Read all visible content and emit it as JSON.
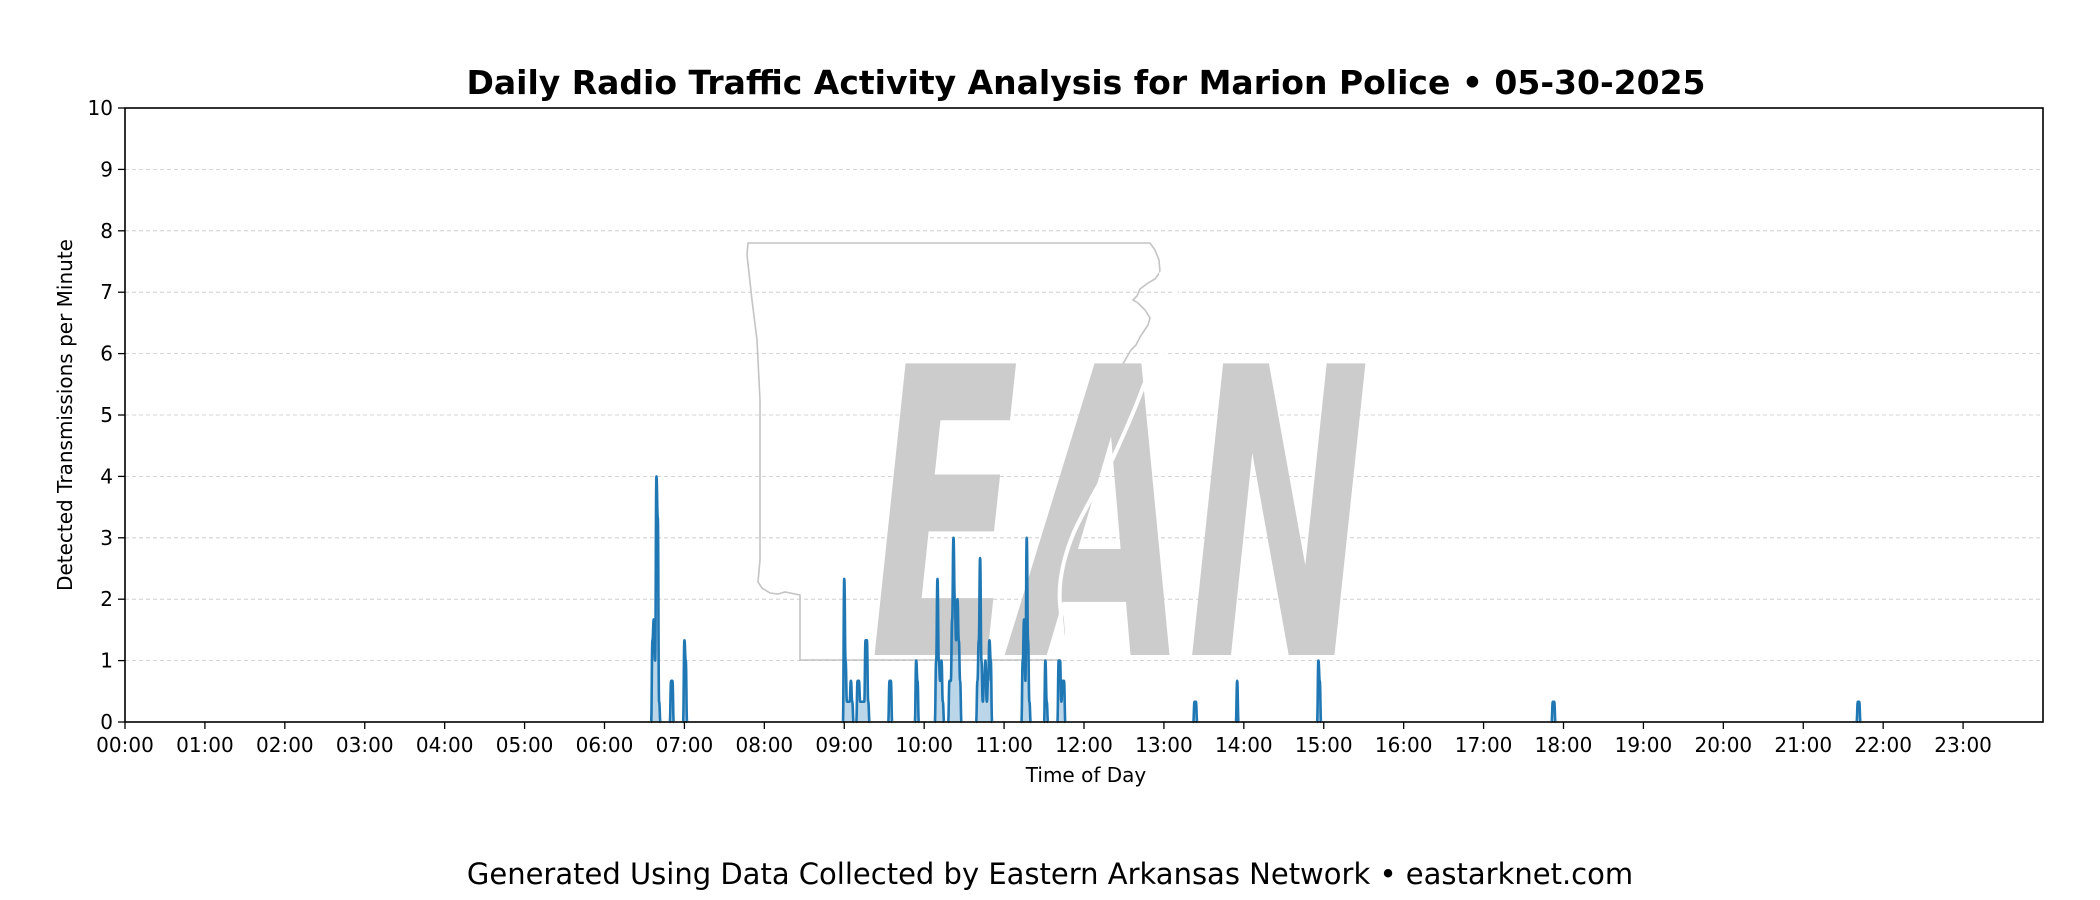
{
  "chart_data": {
    "type": "area",
    "title": "Daily Radio Traffic Activity Analysis for Marion Police • 05-30-2025",
    "xlabel": "Time of Day",
    "ylabel": "Detected Transmissions per Minute",
    "xlim_hours": [
      0,
      24
    ],
    "ylim": [
      0,
      10
    ],
    "y_ticks": [
      0,
      1,
      2,
      3,
      4,
      5,
      6,
      7,
      8,
      9,
      10
    ],
    "x_tick_labels": [
      "00:00",
      "01:00",
      "02:00",
      "03:00",
      "04:00",
      "05:00",
      "06:00",
      "07:00",
      "08:00",
      "09:00",
      "10:00",
      "11:00",
      "12:00",
      "13:00",
      "14:00",
      "15:00",
      "16:00",
      "17:00",
      "18:00",
      "19:00",
      "20:00",
      "21:00",
      "22:00",
      "23:00"
    ],
    "grid": "horizontal-dashed",
    "line_color": "#1f77b4",
    "fill_color": "#1f77b4",
    "series": [
      {
        "points": [
          [
            "06:35",
            0
          ],
          [
            "06:36",
            1.33
          ],
          [
            "06:37",
            1.67
          ],
          [
            "06:38",
            1.0
          ],
          [
            "06:39",
            4.0
          ],
          [
            "06:40",
            3.33
          ],
          [
            "06:41",
            0.33
          ],
          [
            "06:42",
            0
          ],
          [
            "06:49",
            0
          ],
          [
            "06:50",
            0.67
          ],
          [
            "06:51",
            0.67
          ],
          [
            "06:52",
            0
          ],
          [
            "06:59",
            0
          ],
          [
            "07:00",
            1.33
          ],
          [
            "07:01",
            1.0
          ],
          [
            "07:02",
            0
          ],
          [
            "08:59",
            0
          ],
          [
            "09:00",
            2.33
          ],
          [
            "09:01",
            1.0
          ],
          [
            "09:02",
            0.33
          ],
          [
            "09:04",
            0.33
          ],
          [
            "09:05",
            0.67
          ],
          [
            "09:06",
            0.33
          ],
          [
            "09:07",
            0
          ],
          [
            "09:09",
            0
          ],
          [
            "09:10",
            0.67
          ],
          [
            "09:11",
            0.67
          ],
          [
            "09:12",
            0.33
          ],
          [
            "09:13",
            0.33
          ],
          [
            "09:14",
            0.33
          ],
          [
            "09:15",
            0.33
          ],
          [
            "09:16",
            1.33
          ],
          [
            "09:17",
            1.33
          ],
          [
            "09:18",
            0.33
          ],
          [
            "09:19",
            0
          ],
          [
            "09:33",
            0
          ],
          [
            "09:34",
            0.67
          ],
          [
            "09:35",
            0.67
          ],
          [
            "09:36",
            0
          ],
          [
            "09:53",
            0
          ],
          [
            "09:54",
            1.0
          ],
          [
            "09:55",
            0.67
          ],
          [
            "09:56",
            0
          ],
          [
            "10:08",
            0
          ],
          [
            "10:09",
            1.0
          ],
          [
            "10:10",
            2.33
          ],
          [
            "10:11",
            1.0
          ],
          [
            "10:12",
            0.67
          ],
          [
            "10:13",
            1.0
          ],
          [
            "10:14",
            0.33
          ],
          [
            "10:15",
            0
          ],
          [
            "10:18",
            0
          ],
          [
            "10:19",
            0.67
          ],
          [
            "10:20",
            0.67
          ],
          [
            "10:21",
            1.67
          ],
          [
            "10:22",
            3.0
          ],
          [
            "10:23",
            2.0
          ],
          [
            "10:24",
            1.33
          ],
          [
            "10:25",
            2.0
          ],
          [
            "10:26",
            1.33
          ],
          [
            "10:27",
            0.67
          ],
          [
            "10:28",
            0
          ],
          [
            "10:39",
            0
          ],
          [
            "10:40",
            0.67
          ],
          [
            "10:41",
            1.33
          ],
          [
            "10:42",
            2.67
          ],
          [
            "10:43",
            1.0
          ],
          [
            "10:44",
            0.33
          ],
          [
            "10:45",
            0.67
          ],
          [
            "10:46",
            1.0
          ],
          [
            "10:47",
            0.33
          ],
          [
            "10:48",
            0.67
          ],
          [
            "10:49",
            1.33
          ],
          [
            "10:50",
            1.0
          ],
          [
            "10:51",
            0
          ],
          [
            "11:13",
            0
          ],
          [
            "11:14",
            1.0
          ],
          [
            "11:15",
            1.67
          ],
          [
            "11:16",
            0.67
          ],
          [
            "11:17",
            3.0
          ],
          [
            "11:18",
            1.33
          ],
          [
            "11:19",
            0.33
          ],
          [
            "11:20",
            0
          ],
          [
            "11:30",
            0
          ],
          [
            "11:31",
            1.0
          ],
          [
            "11:32",
            0.33
          ],
          [
            "11:33",
            0
          ],
          [
            "11:40",
            0
          ],
          [
            "11:41",
            1.0
          ],
          [
            "11:42",
            1.0
          ],
          [
            "11:43",
            0.33
          ],
          [
            "11:44",
            0.67
          ],
          [
            "11:45",
            0.67
          ],
          [
            "11:46",
            0
          ],
          [
            "13:22",
            0
          ],
          [
            "13:23",
            0.33
          ],
          [
            "13:24",
            0.33
          ],
          [
            "13:25",
            0
          ],
          [
            "13:54",
            0
          ],
          [
            "13:55",
            0.67
          ],
          [
            "13:56",
            0
          ],
          [
            "14:55",
            0
          ],
          [
            "14:56",
            1.0
          ],
          [
            "14:57",
            0.67
          ],
          [
            "14:58",
            0
          ],
          [
            "17:51",
            0
          ],
          [
            "17:52",
            0.33
          ],
          [
            "17:53",
            0.33
          ],
          [
            "17:54",
            0
          ],
          [
            "21:40",
            0
          ],
          [
            "21:41",
            0.33
          ],
          [
            "21:42",
            0.33
          ],
          [
            "21:43",
            0
          ]
        ]
      }
    ]
  },
  "watermark": {
    "text": "EAN",
    "color": "#cccccc"
  },
  "footer": {
    "text": "Generated Using Data Collected by Eastern Arkansas Network • eastarknet.com"
  }
}
